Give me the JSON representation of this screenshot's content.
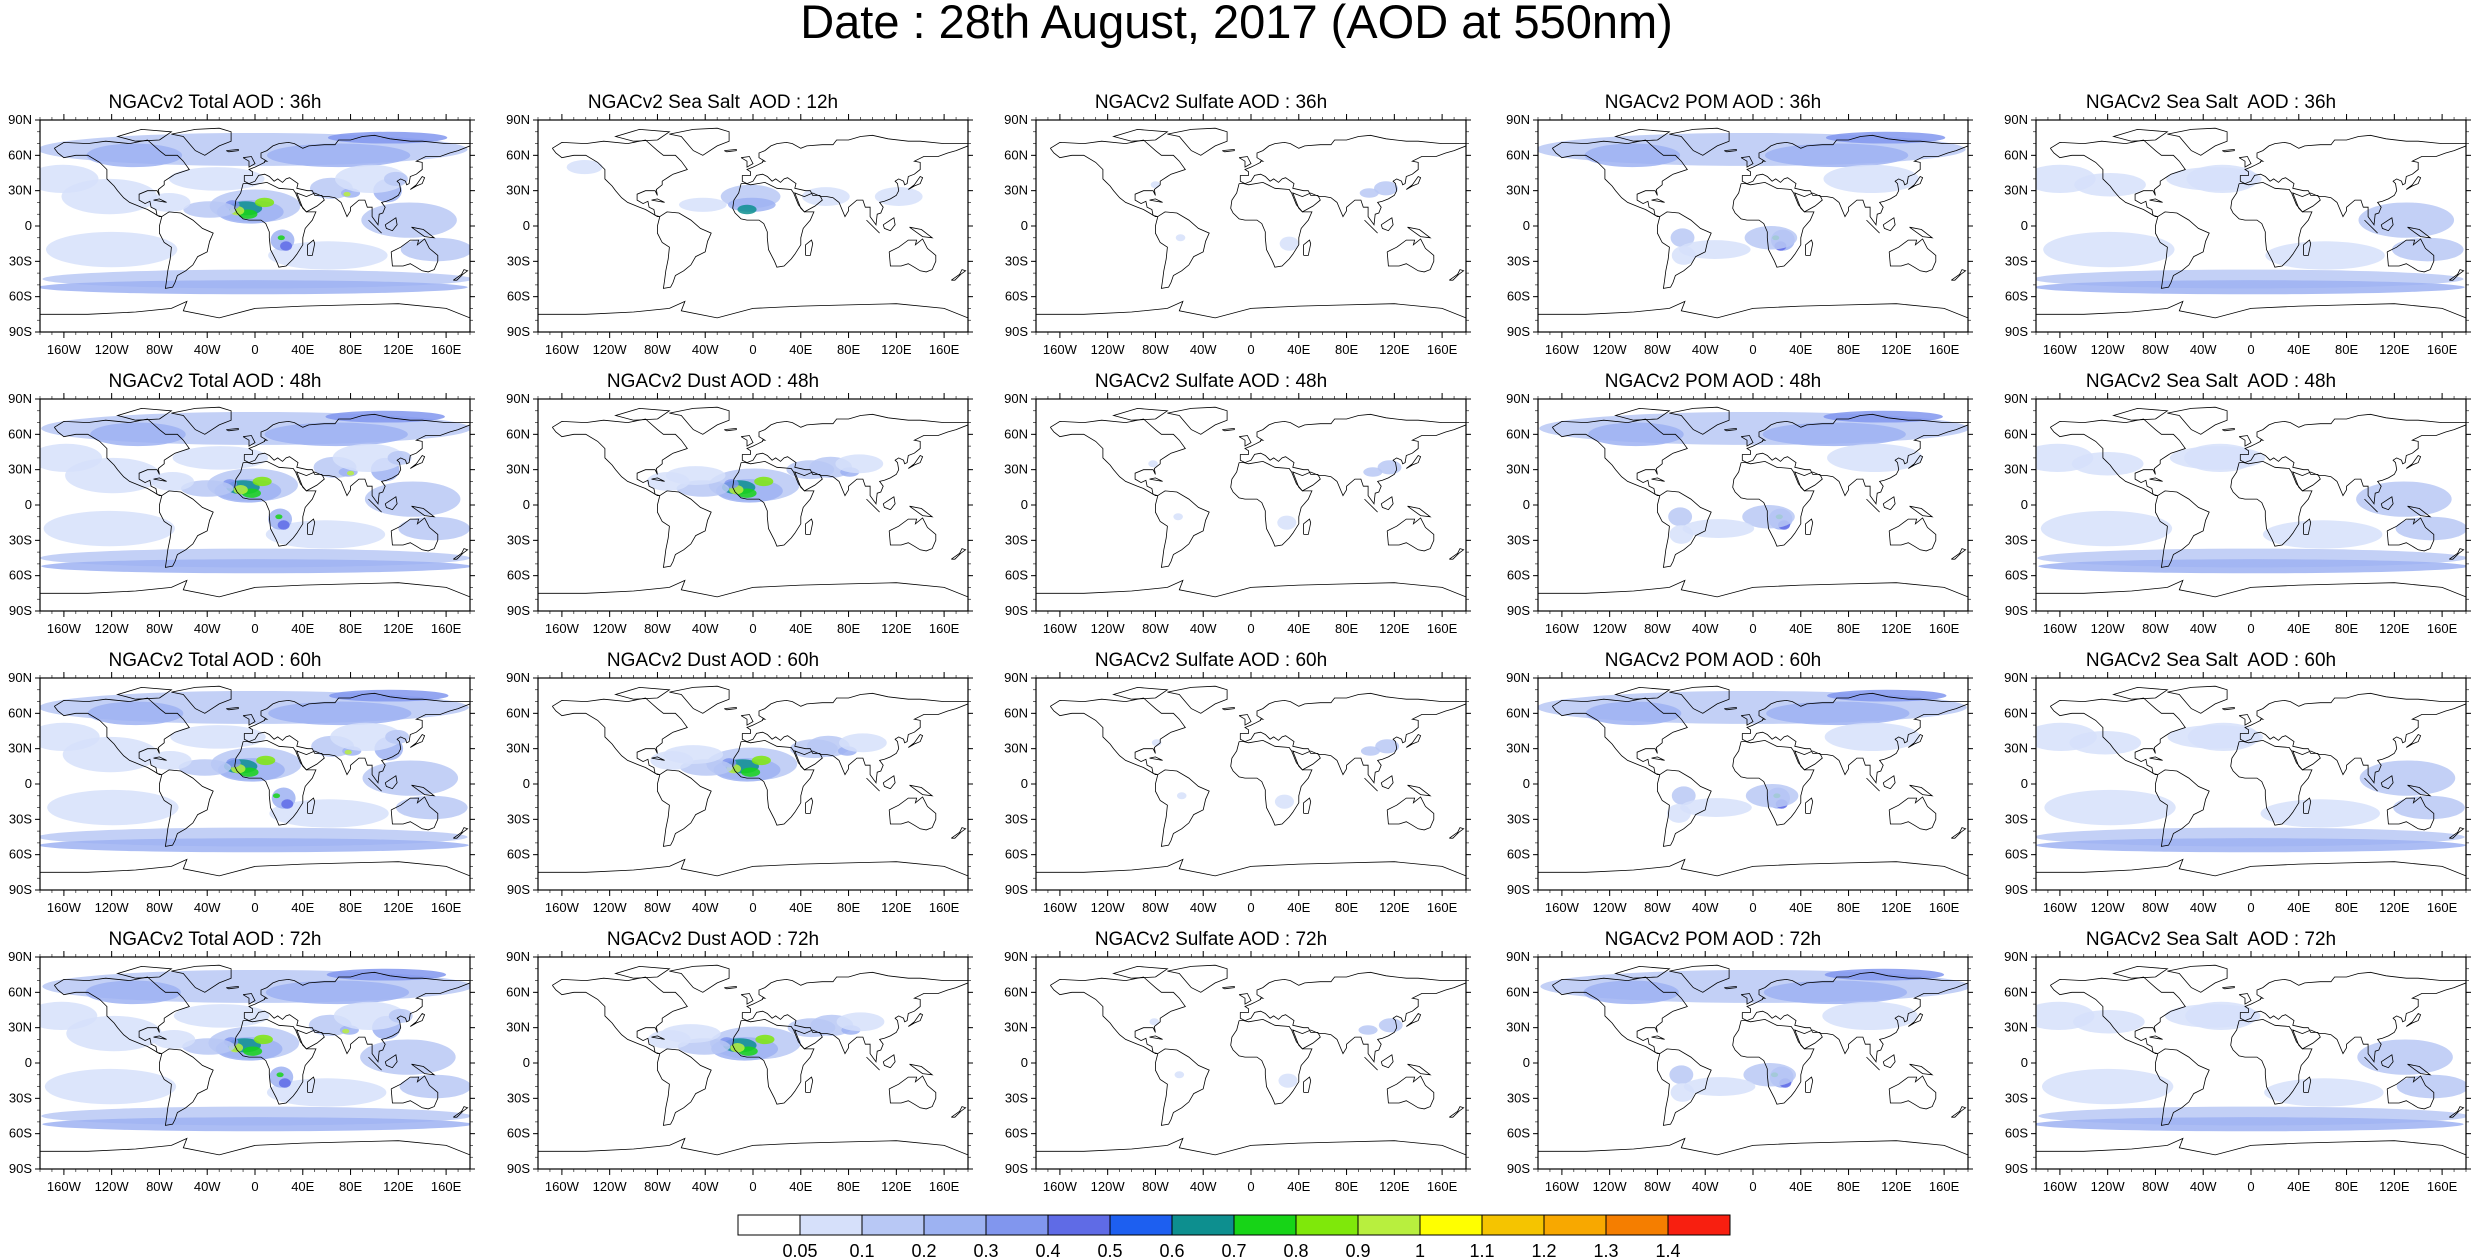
{
  "title": "Date : 28th August, 2017 (AOD at 550nm)",
  "panels": [
    [
      "NGACv2 Total AOD : 36h",
      "NGACv2 Sea Salt  AOD : 12h",
      "NGACv2 Sulfate AOD : 36h",
      "NGACv2 POM AOD : 36h",
      "NGACv2 Sea Salt  AOD : 36h"
    ],
    [
      "NGACv2 Total AOD : 48h",
      "NGACv2 Dust AOD : 48h",
      "NGACv2 Sulfate AOD : 48h",
      "NGACv2 POM AOD : 48h",
      "NGACv2 Sea Salt  AOD : 48h"
    ],
    [
      "NGACv2 Total AOD : 60h",
      "NGACv2 Dust AOD : 60h",
      "NGACv2 Sulfate AOD : 60h",
      "NGACv2 POM AOD : 60h",
      "NGACv2 Sea Salt  AOD : 60h"
    ],
    [
      "NGACv2 Total AOD : 72h",
      "NGACv2 Dust AOD : 72h",
      "NGACv2 Sulfate AOD : 72h",
      "NGACv2 POM AOD : 72h",
      "NGACv2 Sea Salt  AOD : 72h"
    ]
  ],
  "lat_labels": [
    "90N",
    "60N",
    "30N",
    "0",
    "30S",
    "60S",
    "90S"
  ],
  "lon_labels": [
    "160W",
    "120W",
    "80W",
    "40W",
    "0",
    "40E",
    "80E",
    "120E",
    "160E"
  ],
  "lat_values": [
    90,
    60,
    30,
    0,
    -30,
    -60,
    -90
  ],
  "lon_values": [
    -160,
    -120,
    -80,
    -40,
    0,
    40,
    80,
    120,
    160
  ],
  "colorbar": {
    "colors": [
      "#ffffff",
      "#d6e0fa",
      "#b8c8f5",
      "#9db2f2",
      "#8196ee",
      "#5f6be6",
      "#1d5ff0",
      "#0d8f8f",
      "#17d417",
      "#7fe80a",
      "#b8ef3e",
      "#ffff00",
      "#f5c400",
      "#f8a800",
      "#f57e00",
      "#f81f10"
    ],
    "labels": [
      "0.05",
      "0.1",
      "0.2",
      "0.3",
      "0.4",
      "0.5",
      "0.6",
      "0.7",
      "0.8",
      "0.9",
      "1",
      "1.1",
      "1.2",
      "1.3",
      "1.4"
    ]
  }
}
